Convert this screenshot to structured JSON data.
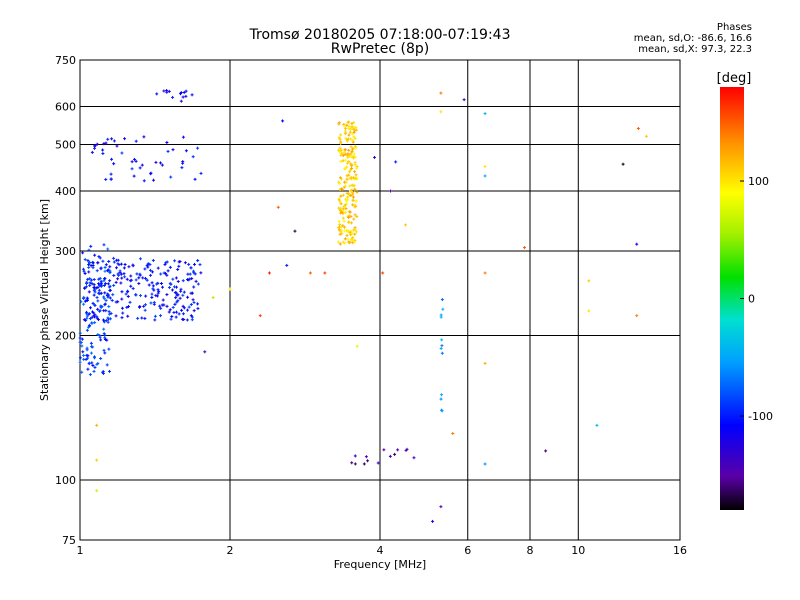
{
  "header": {
    "title": "Tromsø 20180205 07:18:00-07:19:43",
    "subtitle": "RwPretec (8p)",
    "stats_title": "Phases",
    "stats_o": "mean, sd,O: -86.6, 16.6",
    "stats_x": "mean, sd,X:  97.3, 22.3"
  },
  "colorbar": {
    "label": "[deg]",
    "ticks": [
      {
        "value": 100,
        "label": "100"
      },
      {
        "value": 0,
        "label": "0"
      },
      {
        "value": -100,
        "label": "-100"
      }
    ],
    "range": [
      -180,
      180
    ]
  },
  "chart_data": {
    "type": "scatter",
    "title": "Tromsø 20180205 07:18:00-07:19:43",
    "subtitle": "RwPretec (8p)",
    "xlabel": "Frequency [MHz]",
    "ylabel": "Stationary phase Virtual Height [km]",
    "x_scale": "log",
    "y_scale": "log",
    "xlim": [
      1,
      16
    ],
    "ylim": [
      75,
      750
    ],
    "x_ticks": [
      1,
      2,
      4,
      6,
      8,
      10,
      16
    ],
    "x_tick_labels": [
      "1",
      "2",
      "4",
      "6",
      "8",
      "10",
      "16"
    ],
    "y_ticks": [
      75,
      100,
      200,
      300,
      400,
      500,
      600,
      750
    ],
    "y_tick_labels": [
      "75",
      "100",
      "200",
      "300",
      "400",
      "500",
      "600",
      "750"
    ],
    "grid": true,
    "color_variable": "Phase [deg]",
    "clusters": [
      {
        "x_range": [
          1.0,
          1.15
        ],
        "y_range": [
          165,
          310
        ],
        "phase": -90,
        "count": 150
      },
      {
        "x_range": [
          1.02,
          1.75
        ],
        "y_range": [
          215,
          290
        ],
        "phase": -105,
        "count": 260
      },
      {
        "x_range": [
          1.05,
          1.75
        ],
        "y_range": [
          420,
          520
        ],
        "phase": -110,
        "count": 50
      },
      {
        "x_range": [
          1.42,
          1.68
        ],
        "y_range": [
          615,
          650
        ],
        "phase": -115,
        "count": 14
      },
      {
        "x_range": [
          3.3,
          3.6
        ],
        "y_range": [
          310,
          560
        ],
        "phase": 110,
        "count": 230
      },
      {
        "x_range": [
          3.5,
          4.9
        ],
        "y_range": [
          108,
          116
        ],
        "phase": -150,
        "count": 14
      },
      {
        "x_range": [
          5.3,
          5.35
        ],
        "y_range": [
          130,
          240
        ],
        "phase": -60,
        "count": 12
      }
    ],
    "points": [
      {
        "x": 1.08,
        "y": 95,
        "phase": 70
      },
      {
        "x": 1.08,
        "y": 110,
        "phase": 110
      },
      {
        "x": 1.08,
        "y": 130,
        "phase": 120
      },
      {
        "x": 1.78,
        "y": 185,
        "phase": -140
      },
      {
        "x": 1.85,
        "y": 240,
        "phase": 60
      },
      {
        "x": 2.0,
        "y": 250,
        "phase": 100
      },
      {
        "x": 2.3,
        "y": 220,
        "phase": 160
      },
      {
        "x": 2.4,
        "y": 270,
        "phase": 170
      },
      {
        "x": 2.5,
        "y": 370,
        "phase": 150
      },
      {
        "x": 2.55,
        "y": 560,
        "phase": -110
      },
      {
        "x": 2.6,
        "y": 280,
        "phase": -100
      },
      {
        "x": 2.7,
        "y": 330,
        "phase": -170
      },
      {
        "x": 2.9,
        "y": 270,
        "phase": 150
      },
      {
        "x": 3.1,
        "y": 270,
        "phase": 160
      },
      {
        "x": 3.6,
        "y": 190,
        "phase": 80
      },
      {
        "x": 3.9,
        "y": 470,
        "phase": -130
      },
      {
        "x": 4.05,
        "y": 270,
        "phase": 160
      },
      {
        "x": 4.2,
        "y": 400,
        "phase": -150
      },
      {
        "x": 4.3,
        "y": 460,
        "phase": -100
      },
      {
        "x": 4.5,
        "y": 340,
        "phase": 110
      },
      {
        "x": 5.1,
        "y": 82,
        "phase": -120
      },
      {
        "x": 5.3,
        "y": 88,
        "phase": -150
      },
      {
        "x": 5.3,
        "y": 585,
        "phase": 100
      },
      {
        "x": 5.3,
        "y": 640,
        "phase": 140
      },
      {
        "x": 5.6,
        "y": 125,
        "phase": 140
      },
      {
        "x": 5.9,
        "y": 620,
        "phase": -130
      },
      {
        "x": 6.5,
        "y": 108,
        "phase": -60
      },
      {
        "x": 6.5,
        "y": 175,
        "phase": 120
      },
      {
        "x": 6.5,
        "y": 270,
        "phase": 140
      },
      {
        "x": 6.5,
        "y": 430,
        "phase": -50
      },
      {
        "x": 6.5,
        "y": 450,
        "phase": 100
      },
      {
        "x": 6.5,
        "y": 580,
        "phase": -40
      },
      {
        "x": 7.8,
        "y": 305,
        "phase": 150
      },
      {
        "x": 8.6,
        "y": 115,
        "phase": -160
      },
      {
        "x": 10.5,
        "y": 225,
        "phase": 100
      },
      {
        "x": 10.5,
        "y": 260,
        "phase": 110
      },
      {
        "x": 10.9,
        "y": 130,
        "phase": -40
      },
      {
        "x": 12.3,
        "y": 455,
        "phase": -175
      },
      {
        "x": 13.1,
        "y": 220,
        "phase": 140
      },
      {
        "x": 13.1,
        "y": 310,
        "phase": -120
      },
      {
        "x": 13.2,
        "y": 540,
        "phase": 150
      },
      {
        "x": 13.7,
        "y": 520,
        "phase": 110
      }
    ]
  }
}
